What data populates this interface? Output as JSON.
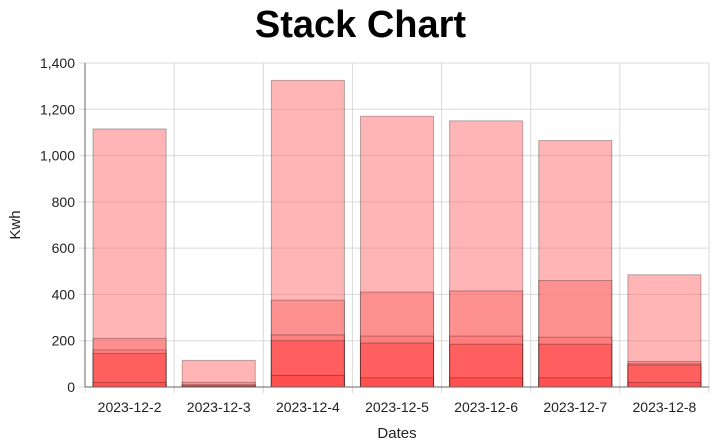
{
  "chart_data": {
    "type": "bar",
    "stacked": false,
    "overlapping": true,
    "title": "Stack Chart",
    "xlabel": "Dates",
    "ylabel": "Kwh",
    "ylim": [
      0,
      1400
    ],
    "yticks": [
      0,
      200,
      400,
      600,
      800,
      1000,
      1200,
      1400
    ],
    "ytick_labels": [
      "0",
      "200",
      "400",
      "600",
      "800",
      "1,000",
      "1,200",
      "1,400"
    ],
    "grid": true,
    "categories": [
      "2023-12-2",
      "2023-12-3",
      "2023-12-4",
      "2023-12-5",
      "2023-12-6",
      "2023-12-7",
      "2023-12-8"
    ],
    "series": [
      {
        "color": "#ff6b6b",
        "opacity": 0.5,
        "values": [
          1115,
          115,
          1325,
          1170,
          1150,
          1065,
          485
        ]
      },
      {
        "color": "#ff6b6b",
        "opacity": 0.5,
        "values": [
          210,
          20,
          375,
          410,
          415,
          460,
          110
        ]
      },
      {
        "color": "#ff6b6b",
        "opacity": 0.5,
        "values": [
          160,
          10,
          225,
          220,
          220,
          215,
          100
        ]
      },
      {
        "color": "#ff4040",
        "opacity": 0.5,
        "values": [
          145,
          5,
          200,
          190,
          185,
          185,
          95
        ]
      },
      {
        "color": "#ff4040",
        "opacity": 0.5,
        "values": [
          20,
          3,
          50,
          40,
          40,
          40,
          20
        ]
      }
    ]
  }
}
